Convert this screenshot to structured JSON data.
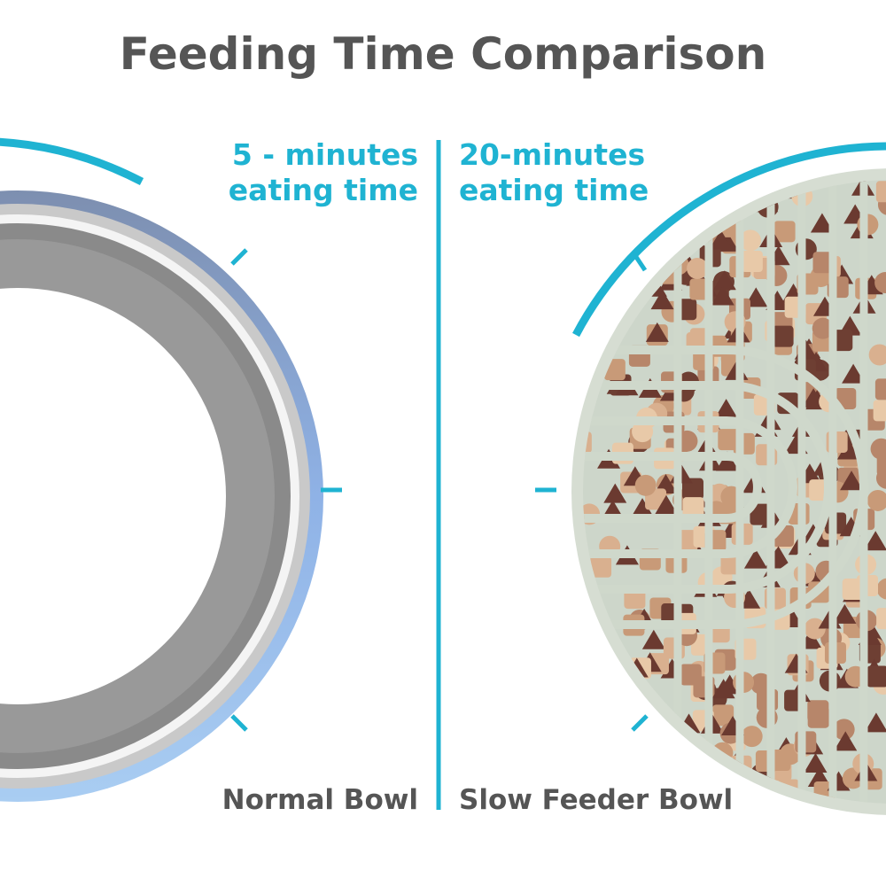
{
  "header": {
    "title": "Feeding Time Comparison"
  },
  "panels": [
    {
      "time_lines": [
        "5 - minutes",
        "eating time"
      ],
      "label": "Normal Bowl"
    },
    {
      "time_lines": [
        "20-minutes",
        "eating time"
      ],
      "label": "Slow Feeder Bowl"
    }
  ]
}
